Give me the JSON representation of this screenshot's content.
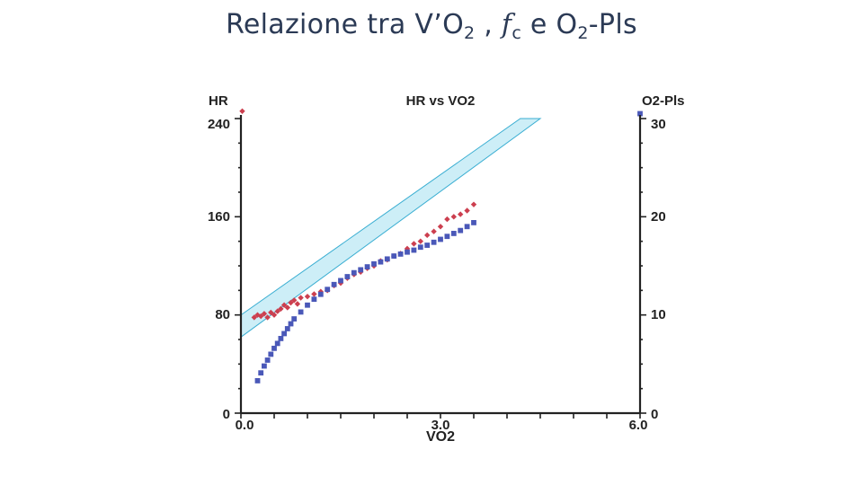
{
  "slide": {
    "title_prefix": "Relazione tra V’O",
    "title_sub1": "2",
    "title_sep": " , ",
    "title_italic": "f",
    "title_sub2": "c",
    "title_mid": " e O",
    "title_sub3": "2",
    "title_suffix": "-Pls"
  },
  "colors": {
    "hr_points": "#cc3f4f",
    "o2pls_points": "#4a58b8",
    "band_fill": "#cdeef7",
    "band_stroke": "#3aaed2",
    "axis": "#222222"
  },
  "chart_data": {
    "type": "scatter",
    "title": "HR vs VO2",
    "xlabel": "VO2",
    "ylabel": "HR",
    "y2label": "O2-Pls",
    "xlim": [
      0,
      6
    ],
    "ylim": [
      0,
      240
    ],
    "y2lim": [
      0,
      30
    ],
    "x_ticks": [
      0,
      3,
      6
    ],
    "x_tick_labels": [
      "0.0",
      "3.0",
      "6.0"
    ],
    "y_ticks": [
      0,
      80,
      160,
      240
    ],
    "y_tick_labels": [
      "0",
      "80",
      "160",
      "240"
    ],
    "y2_ticks": [
      0,
      10,
      20,
      30
    ],
    "y2_tick_labels": [
      "0",
      "10",
      "20",
      "30"
    ],
    "predicted_band": {
      "lower": [
        [
          0,
          62
        ],
        [
          4.5,
          240
        ]
      ],
      "upper": [
        [
          0,
          80
        ],
        [
          4.2,
          240
        ]
      ]
    },
    "series": [
      {
        "name": "HR",
        "axis": "left",
        "marker": "diamond",
        "points": [
          [
            0.2,
            78
          ],
          [
            0.25,
            80
          ],
          [
            0.3,
            79
          ],
          [
            0.35,
            81
          ],
          [
            0.4,
            78
          ],
          [
            0.45,
            82
          ],
          [
            0.5,
            80
          ],
          [
            0.55,
            83
          ],
          [
            0.6,
            85
          ],
          [
            0.65,
            88
          ],
          [
            0.7,
            86
          ],
          [
            0.75,
            90
          ],
          [
            0.8,
            92
          ],
          [
            0.85,
            89
          ],
          [
            0.9,
            94
          ],
          [
            1.0,
            95
          ],
          [
            1.1,
            97
          ],
          [
            1.2,
            99
          ],
          [
            1.3,
            100
          ],
          [
            1.4,
            104
          ],
          [
            1.5,
            106
          ],
          [
            1.6,
            110
          ],
          [
            1.7,
            113
          ],
          [
            1.8,
            115
          ],
          [
            1.9,
            118
          ],
          [
            2.0,
            120
          ],
          [
            2.1,
            124
          ],
          [
            2.2,
            125
          ],
          [
            2.3,
            128
          ],
          [
            2.4,
            130
          ],
          [
            2.5,
            134
          ],
          [
            2.6,
            138
          ],
          [
            2.7,
            140
          ],
          [
            2.8,
            145
          ],
          [
            2.9,
            148
          ],
          [
            3.0,
            152
          ],
          [
            3.1,
            158
          ],
          [
            3.2,
            160
          ],
          [
            3.3,
            162
          ],
          [
            3.4,
            165
          ],
          [
            3.5,
            170
          ],
          [
            0.02,
            246
          ]
        ]
      },
      {
        "name": "O2-Pls",
        "axis": "right",
        "marker": "square",
        "points": [
          [
            0.25,
            3.3
          ],
          [
            0.3,
            4.1
          ],
          [
            0.35,
            4.8
          ],
          [
            0.4,
            5.4
          ],
          [
            0.45,
            6.0
          ],
          [
            0.5,
            6.6
          ],
          [
            0.55,
            7.1
          ],
          [
            0.6,
            7.6
          ],
          [
            0.65,
            8.1
          ],
          [
            0.7,
            8.6
          ],
          [
            0.75,
            9.1
          ],
          [
            0.8,
            9.6
          ],
          [
            0.9,
            10.3
          ],
          [
            1.0,
            11.0
          ],
          [
            1.1,
            11.6
          ],
          [
            1.2,
            12.1
          ],
          [
            1.3,
            12.6
          ],
          [
            1.4,
            13.1
          ],
          [
            1.5,
            13.5
          ],
          [
            1.6,
            13.9
          ],
          [
            1.7,
            14.3
          ],
          [
            1.8,
            14.6
          ],
          [
            1.9,
            14.9
          ],
          [
            2.0,
            15.2
          ],
          [
            2.1,
            15.4
          ],
          [
            2.2,
            15.7
          ],
          [
            2.3,
            16.0
          ],
          [
            2.4,
            16.2
          ],
          [
            2.5,
            16.4
          ],
          [
            2.6,
            16.6
          ],
          [
            2.7,
            16.9
          ],
          [
            2.8,
            17.1
          ],
          [
            2.9,
            17.4
          ],
          [
            3.0,
            17.7
          ],
          [
            3.1,
            18.0
          ],
          [
            3.2,
            18.3
          ],
          [
            3.3,
            18.6
          ],
          [
            3.4,
            19.0
          ],
          [
            3.5,
            19.4
          ],
          [
            6.0,
            30.5
          ]
        ]
      }
    ]
  }
}
